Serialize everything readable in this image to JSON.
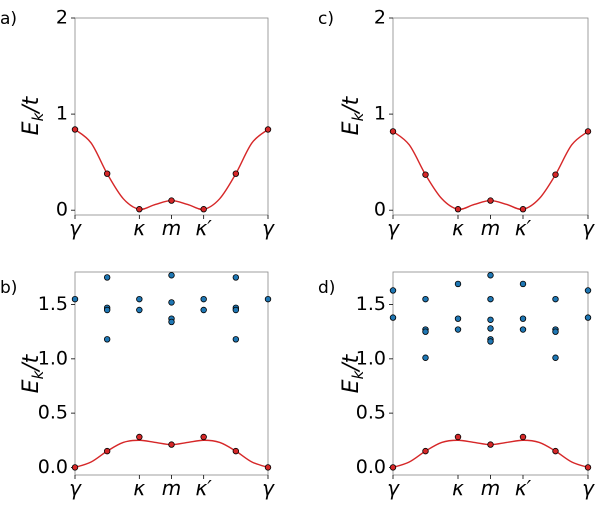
{
  "chart_data": [
    {
      "type": "line",
      "panel_label": "a)",
      "ylabel": "E_k/t",
      "ylim": [
        -0.05,
        2.0
      ],
      "yticks": [
        0,
        1,
        2
      ],
      "ytick_labels": [
        "0",
        "1",
        "2"
      ],
      "xlim": [
        0,
        6
      ],
      "xticks": [
        0,
        2,
        3,
        4,
        6
      ],
      "xtick_labels": [
        "γ",
        "κ",
        "m",
        "κ′",
        "γ"
      ],
      "curve": {
        "color": "#d62728",
        "x": [
          0,
          0.5,
          1,
          1.5,
          2,
          2.5,
          3,
          3.5,
          4,
          4.5,
          5,
          5.5,
          6
        ],
        "y": [
          0.84,
          0.7,
          0.38,
          0.12,
          0.01,
          0.06,
          0.1,
          0.06,
          0.01,
          0.12,
          0.38,
          0.7,
          0.84
        ]
      },
      "points_red": {
        "x": [
          0,
          1,
          2,
          3,
          4,
          5,
          6
        ],
        "y": [
          0.84,
          0.38,
          0.01,
          0.1,
          0.01,
          0.38,
          0.84
        ]
      },
      "points_blue": {
        "x": [],
        "y": []
      }
    },
    {
      "type": "line",
      "panel_label": "c)",
      "ylabel": "E_k/t",
      "ylim": [
        -0.05,
        2.0
      ],
      "yticks": [
        0,
        1,
        2
      ],
      "ytick_labels": [
        "0",
        "1",
        "2"
      ],
      "xlim": [
        0,
        6
      ],
      "xticks": [
        0,
        2,
        3,
        4,
        6
      ],
      "xtick_labels": [
        "γ",
        "κ",
        "m",
        "κ′",
        "γ"
      ],
      "curve": {
        "color": "#d62728",
        "x": [
          0,
          0.5,
          1,
          1.5,
          2,
          2.5,
          3,
          3.5,
          4,
          4.5,
          5,
          5.5,
          6
        ],
        "y": [
          0.82,
          0.68,
          0.37,
          0.12,
          0.01,
          0.06,
          0.1,
          0.06,
          0.01,
          0.12,
          0.37,
          0.68,
          0.82
        ]
      },
      "points_red": {
        "x": [
          0,
          1,
          2,
          3,
          4,
          5,
          6
        ],
        "y": [
          0.82,
          0.37,
          0.01,
          0.1,
          0.01,
          0.37,
          0.82
        ]
      },
      "points_blue": {
        "x": [],
        "y": []
      }
    },
    {
      "type": "scatter",
      "panel_label": "b)",
      "ylabel": "E_k/t",
      "ylim": [
        -0.07,
        1.8
      ],
      "yticks": [
        0,
        0.5,
        1,
        1.5
      ],
      "ytick_labels": [
        "0.0",
        "0.5",
        "1.0",
        "1.5"
      ],
      "xlim": [
        0,
        6
      ],
      "xticks": [
        0,
        2,
        3,
        4,
        6
      ],
      "xtick_labels": [
        "γ",
        "κ",
        "m",
        "κ′",
        "γ"
      ],
      "curve": {
        "color": "#d62728",
        "x": [
          0,
          0.5,
          1,
          1.5,
          2,
          2.5,
          3,
          3.5,
          4,
          4.5,
          5,
          5.5,
          6
        ],
        "y": [
          0.0,
          0.05,
          0.15,
          0.23,
          0.25,
          0.23,
          0.21,
          0.23,
          0.25,
          0.23,
          0.15,
          0.05,
          0.0
        ]
      },
      "points_red": {
        "x": [
          0,
          1,
          2,
          3,
          4,
          5,
          6
        ],
        "y": [
          0.0,
          0.15,
          0.28,
          0.21,
          0.28,
          0.15,
          0.0
        ]
      },
      "points_blue": {
        "x": [
          0,
          1,
          1,
          1,
          1,
          2,
          2,
          3,
          3,
          3,
          3,
          4,
          4,
          5,
          5,
          5,
          5,
          6
        ],
        "y": [
          1.55,
          1.75,
          1.47,
          1.45,
          1.18,
          1.55,
          1.45,
          1.77,
          1.52,
          1.37,
          1.34,
          1.55,
          1.45,
          1.75,
          1.47,
          1.45,
          1.18,
          1.55
        ]
      }
    },
    {
      "type": "scatter",
      "panel_label": "d)",
      "ylabel": "E_k/t",
      "ylim": [
        -0.07,
        1.8
      ],
      "yticks": [
        0,
        0.5,
        1,
        1.5
      ],
      "ytick_labels": [
        "0.0",
        "0.5",
        "1.0",
        "1.5"
      ],
      "xlim": [
        0,
        6
      ],
      "xticks": [
        0,
        2,
        3,
        4,
        6
      ],
      "xtick_labels": [
        "γ",
        "κ",
        "m",
        "κ′",
        "γ"
      ],
      "curve": {
        "color": "#d62728",
        "x": [
          0,
          0.5,
          1,
          1.5,
          2,
          2.5,
          3,
          3.5,
          4,
          4.5,
          5,
          5.5,
          6
        ],
        "y": [
          0.0,
          0.05,
          0.15,
          0.23,
          0.25,
          0.23,
          0.21,
          0.23,
          0.25,
          0.23,
          0.15,
          0.05,
          0.0
        ]
      },
      "points_red": {
        "x": [
          0,
          1,
          2,
          3,
          4,
          5,
          6
        ],
        "y": [
          0.0,
          0.15,
          0.28,
          0.21,
          0.28,
          0.15,
          0.0
        ]
      },
      "points_blue": {
        "x": [
          0,
          0,
          1,
          1,
          1,
          1,
          2,
          2,
          2,
          3,
          3,
          3,
          3,
          3,
          3,
          4,
          4,
          4,
          5,
          5,
          5,
          5,
          6,
          6
        ],
        "y": [
          1.63,
          1.38,
          1.55,
          1.27,
          1.25,
          1.01,
          1.69,
          1.37,
          1.27,
          1.77,
          1.55,
          1.36,
          1.28,
          1.18,
          1.16,
          1.69,
          1.37,
          1.27,
          1.55,
          1.27,
          1.25,
          1.01,
          1.63,
          1.38
        ]
      }
    }
  ],
  "colors": {
    "red_fill": "#d62728",
    "blue_fill": "#1f77b4",
    "marker_edge": "#000000",
    "axis": "#888888"
  }
}
